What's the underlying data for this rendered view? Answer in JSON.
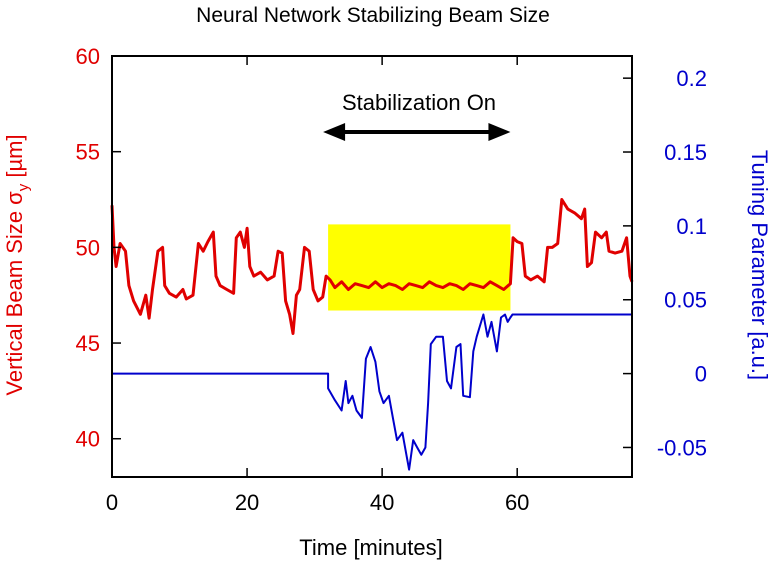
{
  "chart_data": {
    "type": "line",
    "title": "Neural Network Stabilizing Beam Size",
    "xlabel": "Time [minutes]",
    "ylabel_left": "Vertical Beam Size σy [µm]",
    "ylabel_left_main": "Vertical Beam Size σ",
    "ylabel_left_sub": "y",
    "ylabel_left_unit": " [µm]",
    "ylabel_right": "Tuning Parameter [a.u.]",
    "xlim": [
      0,
      77
    ],
    "ylim_left": [
      38,
      60
    ],
    "ylim_right": [
      -0.07,
      0.215
    ],
    "x_ticks": [
      "0",
      "20",
      "40",
      "60"
    ],
    "y_left_ticks": [
      "40",
      "45",
      "50",
      "55",
      "60"
    ],
    "y_right_ticks": [
      "-0.05",
      "0",
      "0.05",
      "0.1",
      "0.15",
      "0.2"
    ],
    "annotation": {
      "text": "Stabilization On",
      "x_start": 32,
      "x_end": 59
    },
    "highlight": {
      "x_start": 32,
      "x_end": 59,
      "y_start": 46.7,
      "y_end": 51.2,
      "color": "#ffff00"
    },
    "colors": {
      "left_series": "#e00000",
      "right_series": "#0000cc",
      "highlight": "#ffff00"
    },
    "series": [
      {
        "axis": "left",
        "color": "#e00000",
        "points": [
          [
            0,
            52.2
          ],
          [
            0.3,
            50
          ],
          [
            0.6,
            49
          ],
          [
            1.2,
            50.2
          ],
          [
            2,
            49.8
          ],
          [
            2.5,
            48
          ],
          [
            3.2,
            47.2
          ],
          [
            4.2,
            46.5
          ],
          [
            5,
            47.5
          ],
          [
            5.5,
            46.3
          ],
          [
            6,
            47.8
          ],
          [
            6.8,
            49.8
          ],
          [
            7.5,
            50
          ],
          [
            7.8,
            48
          ],
          [
            8.5,
            47.6
          ],
          [
            9.5,
            47.4
          ],
          [
            10.5,
            47.8
          ],
          [
            11,
            47.3
          ],
          [
            12,
            47.5
          ],
          [
            12.8,
            50.2
          ],
          [
            13.5,
            49.8
          ],
          [
            14.2,
            50.3
          ],
          [
            15,
            50.8
          ],
          [
            15.4,
            48.5
          ],
          [
            16,
            48
          ],
          [
            17,
            47.8
          ],
          [
            18,
            47.6
          ],
          [
            18.4,
            50.5
          ],
          [
            19,
            50.8
          ],
          [
            19.6,
            50
          ],
          [
            20,
            51
          ],
          [
            20.4,
            49
          ],
          [
            21,
            48.5
          ],
          [
            22,
            48.7
          ],
          [
            23,
            48.3
          ],
          [
            24,
            48.5
          ],
          [
            24.6,
            49.8
          ],
          [
            25.2,
            49.7
          ],
          [
            25.7,
            47.2
          ],
          [
            26.3,
            46.5
          ],
          [
            26.8,
            45.5
          ],
          [
            27.3,
            47.5
          ],
          [
            27.8,
            47.8
          ],
          [
            28.5,
            50
          ],
          [
            29.2,
            49.8
          ],
          [
            29.8,
            47.8
          ],
          [
            30.5,
            47.2
          ],
          [
            31.2,
            47.4
          ],
          [
            31.7,
            48.5
          ],
          [
            32.3,
            48.3
          ],
          [
            33,
            47.9
          ],
          [
            34,
            48.2
          ],
          [
            35,
            47.8
          ],
          [
            36,
            48.1
          ],
          [
            37,
            48
          ],
          [
            38,
            47.9
          ],
          [
            39,
            48.2
          ],
          [
            40,
            47.9
          ],
          [
            41,
            48.1
          ],
          [
            42,
            48
          ],
          [
            43,
            47.8
          ],
          [
            44,
            48.1
          ],
          [
            45,
            48
          ],
          [
            46,
            47.9
          ],
          [
            47,
            48.2
          ],
          [
            48,
            48
          ],
          [
            49,
            47.9
          ],
          [
            50,
            48.1
          ],
          [
            51,
            48
          ],
          [
            52,
            47.8
          ],
          [
            53,
            48.1
          ],
          [
            54,
            48
          ],
          [
            55,
            47.9
          ],
          [
            56,
            48.2
          ],
          [
            57,
            48
          ],
          [
            58,
            47.8
          ],
          [
            59,
            48.1
          ],
          [
            59.4,
            50.5
          ],
          [
            60,
            50.3
          ],
          [
            60.7,
            50.2
          ],
          [
            61.2,
            48.5
          ],
          [
            62,
            48.3
          ],
          [
            63,
            48.5
          ],
          [
            64,
            48.2
          ],
          [
            64.5,
            50
          ],
          [
            65.2,
            50
          ],
          [
            66,
            50.2
          ],
          [
            66.6,
            52.5
          ],
          [
            67.5,
            52
          ],
          [
            68.5,
            51.8
          ],
          [
            69.5,
            51.5
          ],
          [
            70,
            52
          ],
          [
            70.4,
            49
          ],
          [
            71,
            49.2
          ],
          [
            71.6,
            50.8
          ],
          [
            72.5,
            50.5
          ],
          [
            73.2,
            50.8
          ],
          [
            73.6,
            49.8
          ],
          [
            74.5,
            49.7
          ],
          [
            75.5,
            49.8
          ],
          [
            76.2,
            50.5
          ],
          [
            76.7,
            48.5
          ],
          [
            77,
            48.2
          ]
        ]
      },
      {
        "axis": "right",
        "color": "#0000cc",
        "points": [
          [
            0,
            0
          ],
          [
            32,
            0
          ],
          [
            32,
            -0.01
          ],
          [
            33,
            -0.018
          ],
          [
            34,
            -0.025
          ],
          [
            34.6,
            -0.005
          ],
          [
            35,
            -0.02
          ],
          [
            35.6,
            -0.015
          ],
          [
            36.2,
            -0.025
          ],
          [
            37,
            -0.03
          ],
          [
            37.6,
            0.01
          ],
          [
            38.3,
            0.018
          ],
          [
            39,
            0.008
          ],
          [
            39.6,
            -0.012
          ],
          [
            40.2,
            -0.02
          ],
          [
            41,
            -0.015
          ],
          [
            41.6,
            -0.03
          ],
          [
            42.2,
            -0.045
          ],
          [
            43,
            -0.04
          ],
          [
            43.6,
            -0.055
          ],
          [
            44,
            -0.065
          ],
          [
            44.6,
            -0.045
          ],
          [
            45.2,
            -0.05
          ],
          [
            45.8,
            -0.055
          ],
          [
            46.4,
            -0.05
          ],
          [
            46.8,
            -0.02
          ],
          [
            47.2,
            0.02
          ],
          [
            48,
            0.025
          ],
          [
            49,
            0.025
          ],
          [
            49.6,
            -0.005
          ],
          [
            50.2,
            -0.01
          ],
          [
            51,
            0.018
          ],
          [
            51.6,
            0.02
          ],
          [
            52,
            -0.015
          ],
          [
            53,
            -0.016
          ],
          [
            53.5,
            0.015
          ],
          [
            54,
            0.025
          ],
          [
            55,
            0.04
          ],
          [
            55.6,
            0.025
          ],
          [
            56.2,
            0.035
          ],
          [
            57,
            0.015
          ],
          [
            57.6,
            0.038
          ],
          [
            58.2,
            0.04
          ],
          [
            58.6,
            0.035
          ],
          [
            59,
            0.038
          ],
          [
            59.3,
            0.04
          ],
          [
            77,
            0.04
          ]
        ]
      }
    ]
  }
}
